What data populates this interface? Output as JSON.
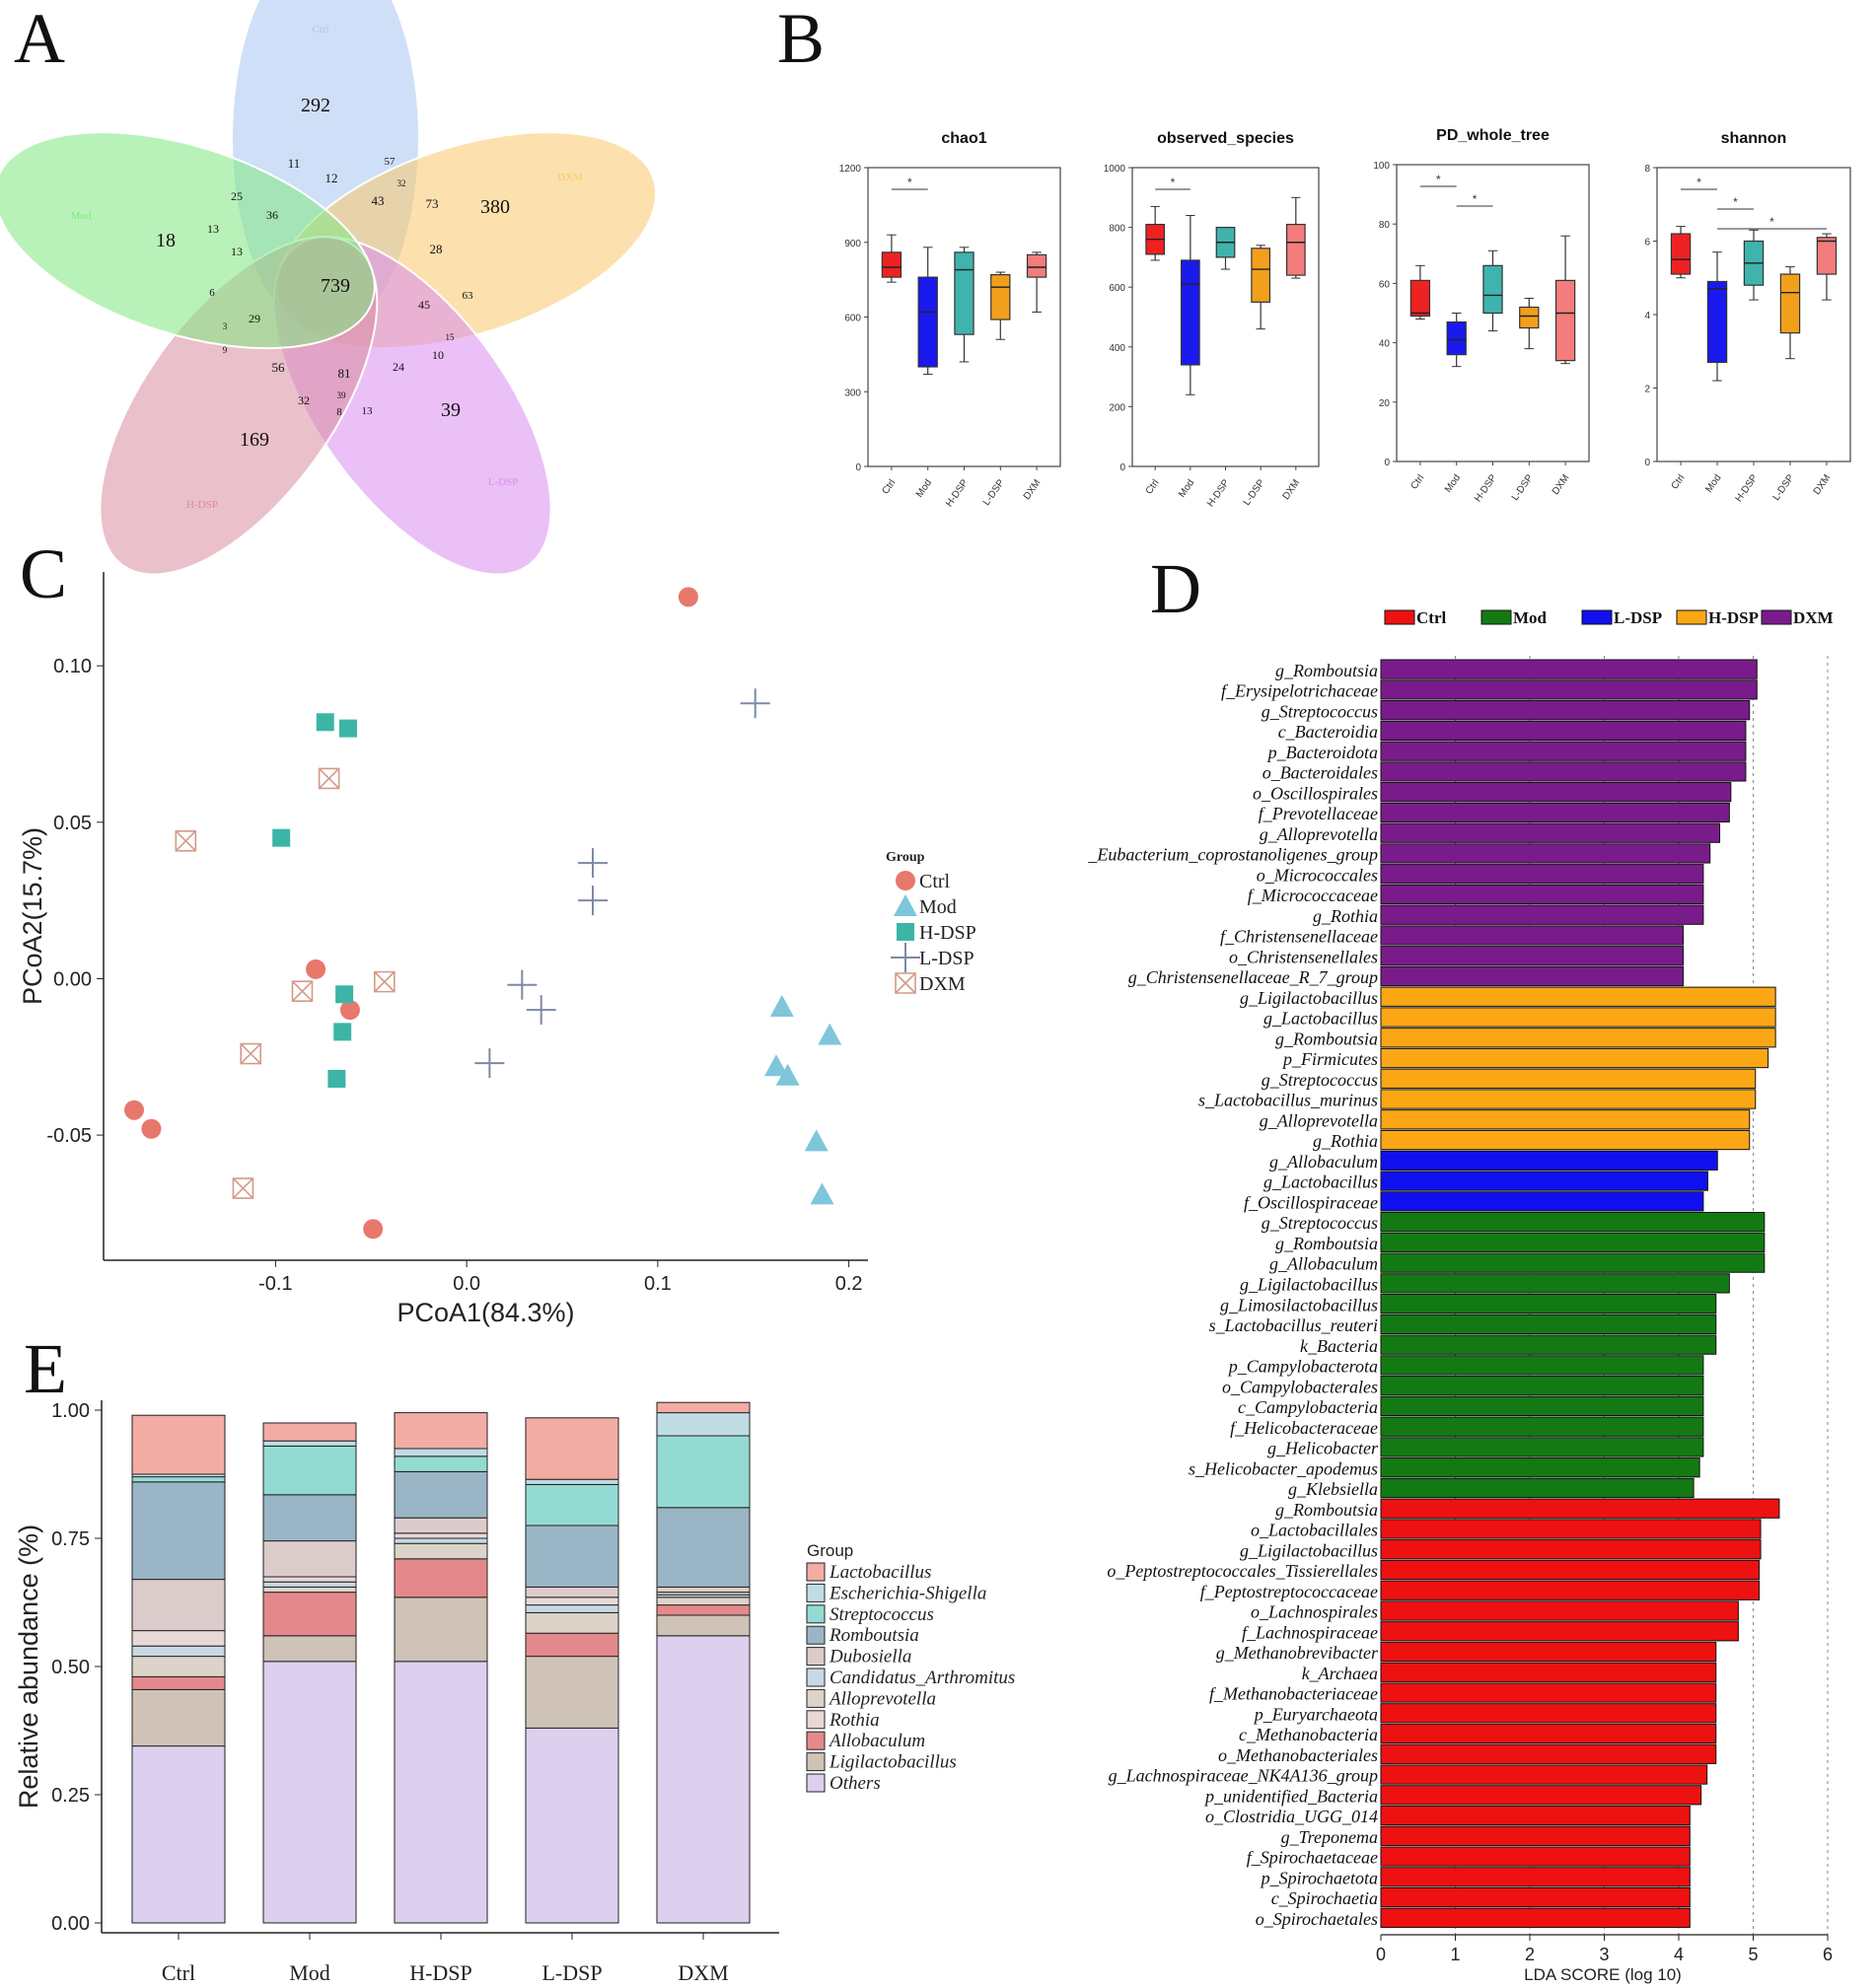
{
  "panels": {
    "A": "A",
    "B": "B",
    "C": "C",
    "D": "D",
    "E": "E"
  },
  "colors": {
    "Ctrl": "#ee2222",
    "Mod": "#1a1aee",
    "H-DSP": "#3fb3ad",
    "L-DSP": "#f2a01b",
    "DXM": "#f47c7c",
    "lda_Ctrl": "#ee1111",
    "lda_Mod": "#137a13",
    "lda_L-DSP": "#1010ee",
    "lda_H-DSP": "#fba715",
    "lda_DXM": "#7a1b8c",
    "pcoa_Ctrl": "#e8776c",
    "pcoa_Mod": "#7fc6da",
    "pcoa_H-DSP": "#3cb5a6",
    "pcoa_L-DSP": "#7d8aa5",
    "pcoa_DXM": "#d49b86"
  },
  "chart_data": [
    {
      "panel": "A",
      "type": "venn",
      "sets": [
        {
          "name": "Ctrl",
          "color": "#aac4f2",
          "unique": 292
        },
        {
          "name": "DXM",
          "color": "#f9c86b",
          "unique": 380
        },
        {
          "name": "L-DSP",
          "color": "#d98cf0",
          "unique": 39
        },
        {
          "name": "H-DSP",
          "color": "#d98c9e",
          "unique": 169
        },
        {
          "name": "Mod",
          "color": "#7fe77f",
          "unique": 18
        }
      ],
      "core": 739,
      "region_labels": [
        "11",
        "12",
        "57",
        "32",
        "73",
        "43",
        "28",
        "36",
        "25",
        "13",
        "13",
        "6",
        "29",
        "3",
        "9",
        "45",
        "63",
        "10",
        "15",
        "24",
        "81",
        "56",
        "32",
        "39",
        "13",
        "8"
      ]
    },
    {
      "panel": "B",
      "type": "box",
      "groups": [
        "Ctrl",
        "Mod",
        "H-DSP",
        "L-DSP",
        "DXM"
      ],
      "plots": [
        {
          "title": "chao1",
          "ymax": 1200,
          "ticks": [
            0,
            300,
            600,
            900,
            1200
          ],
          "boxes": [
            [
              740,
              760,
              800,
              860,
              930
            ],
            [
              370,
              400,
              620,
              760,
              880
            ],
            [
              420,
              530,
              790,
              860,
              880
            ],
            [
              510,
              590,
              720,
              770,
              780
            ],
            [
              620,
              760,
              800,
              850,
              860
            ]
          ],
          "sig": [
            [
              0,
              1
            ]
          ]
        },
        {
          "title": "observed_species",
          "ymax": 1000,
          "ticks": [
            0,
            200,
            400,
            600,
            800,
            1000
          ],
          "boxes": [
            [
              690,
              710,
              760,
              810,
              870
            ],
            [
              240,
              340,
              610,
              690,
              840
            ],
            [
              660,
              700,
              750,
              800,
              800
            ],
            [
              460,
              550,
              660,
              730,
              740
            ],
            [
              630,
              640,
              750,
              810,
              900
            ]
          ],
          "sig": [
            [
              0,
              1
            ]
          ]
        },
        {
          "title": "PD_whole_tree",
          "ymax": 100,
          "ticks": [
            0,
            20,
            40,
            60,
            80,
            100
          ],
          "boxes": [
            [
              48,
              49,
              50,
              61,
              66
            ],
            [
              32,
              36,
              41,
              47,
              50
            ],
            [
              44,
              50,
              56,
              66,
              71
            ],
            [
              38,
              45,
              49,
              52,
              55
            ],
            [
              33,
              34,
              50,
              61,
              76
            ]
          ],
          "sig": [
            [
              0,
              1
            ],
            [
              1,
              2
            ]
          ]
        },
        {
          "title": "shannon",
          "ymax": 8,
          "ticks": [
            0,
            2,
            4,
            6,
            8
          ],
          "boxes": [
            [
              5.0,
              5.1,
              5.5,
              6.2,
              6.4
            ],
            [
              2.2,
              2.7,
              4.7,
              4.9,
              5.7
            ],
            [
              4.4,
              4.8,
              5.4,
              6.0,
              6.3
            ],
            [
              2.8,
              3.5,
              4.6,
              5.1,
              5.3
            ],
            [
              4.4,
              5.1,
              6.0,
              6.1,
              6.2
            ]
          ],
          "sig": [
            [
              0,
              1
            ],
            [
              1,
              2
            ],
            [
              1,
              4
            ]
          ]
        }
      ]
    },
    {
      "panel": "C",
      "type": "scatter",
      "xlabel": "PCoA1(84.3%)",
      "ylabel": "PCoA2(15.7%)",
      "xlim": [
        -0.19,
        0.21
      ],
      "ylim": [
        -0.09,
        0.13
      ],
      "xticks": [
        -0.1,
        0.0,
        0.1,
        0.2
      ],
      "xtick_labels": [
        "-0.1",
        "0.0",
        "0.1",
        "0.2"
      ],
      "yticks": [
        -0.05,
        0.0,
        0.05,
        0.1
      ],
      "ytick_labels": [
        "-0.05",
        "0.00",
        "0.05",
        "0.10"
      ],
      "legend_title": "Group",
      "series": [
        {
          "name": "Ctrl",
          "shape": "circle",
          "points": [
            [
              0.116,
              0.122
            ],
            [
              -0.079,
              0.003
            ],
            [
              -0.061,
              -0.01
            ],
            [
              -0.174,
              -0.042
            ],
            [
              -0.165,
              -0.048
            ],
            [
              -0.049,
              -0.08
            ]
          ]
        },
        {
          "name": "Mod",
          "shape": "triangle",
          "points": [
            [
              0.165,
              -0.009
            ],
            [
              0.19,
              -0.018
            ],
            [
              0.162,
              -0.028
            ],
            [
              0.168,
              -0.031
            ],
            [
              0.183,
              -0.052
            ],
            [
              0.186,
              -0.069
            ]
          ]
        },
        {
          "name": "H-DSP",
          "shape": "square",
          "points": [
            [
              -0.074,
              0.082
            ],
            [
              -0.062,
              0.08
            ],
            [
              -0.097,
              0.045
            ],
            [
              -0.064,
              -0.005
            ],
            [
              -0.065,
              -0.017
            ],
            [
              -0.068,
              -0.032
            ]
          ]
        },
        {
          "name": "L-DSP",
          "shape": "plus",
          "points": [
            [
              0.151,
              0.088
            ],
            [
              0.066,
              0.037
            ],
            [
              0.066,
              0.025
            ],
            [
              0.029,
              -0.002
            ],
            [
              0.039,
              -0.01
            ],
            [
              0.012,
              -0.027
            ]
          ]
        },
        {
          "name": "DXM",
          "shape": "boxx",
          "points": [
            [
              -0.072,
              0.064
            ],
            [
              -0.147,
              0.044
            ],
            [
              -0.086,
              -0.004
            ],
            [
              -0.043,
              -0.001
            ],
            [
              -0.113,
              -0.024
            ],
            [
              -0.117,
              -0.067
            ]
          ]
        }
      ]
    },
    {
      "panel": "D",
      "type": "bar",
      "orientation": "horizontal",
      "xlabel": "LDA SCORE (log 10)",
      "xlim": [
        0,
        6
      ],
      "xticks": [
        "0",
        "1",
        "2",
        "3",
        "4",
        "5",
        "6"
      ],
      "legend": [
        "Ctrl",
        "Mod",
        "L-DSP",
        "H-DSP",
        "DXM"
      ],
      "bars": [
        {
          "label": "g_Romboutsia",
          "value": 5.05,
          "group": "DXM"
        },
        {
          "label": "f_Erysipelotrichaceae",
          "value": 5.05,
          "group": "DXM"
        },
        {
          "label": "g_Streptococcus",
          "value": 4.95,
          "group": "DXM"
        },
        {
          "label": "c_Bacteroidia",
          "value": 4.9,
          "group": "DXM"
        },
        {
          "label": "p_Bacteroidota",
          "value": 4.9,
          "group": "DXM"
        },
        {
          "label": "o_Bacteroidales",
          "value": 4.9,
          "group": "DXM"
        },
        {
          "label": "o_Oscillospirales",
          "value": 4.7,
          "group": "DXM"
        },
        {
          "label": "f_Prevotellaceae",
          "value": 4.68,
          "group": "DXM"
        },
        {
          "label": "g_Alloprevotella",
          "value": 4.55,
          "group": "DXM"
        },
        {
          "label": "_Eubacterium_coprostanoligenes_group",
          "value": 4.42,
          "group": "DXM"
        },
        {
          "label": "o_Micrococcales",
          "value": 4.33,
          "group": "DXM"
        },
        {
          "label": "f_Micrococcaceae",
          "value": 4.33,
          "group": "DXM"
        },
        {
          "label": "g_Rothia",
          "value": 4.33,
          "group": "DXM"
        },
        {
          "label": "f_Christensenellaceae",
          "value": 4.06,
          "group": "DXM"
        },
        {
          "label": "o_Christensenellales",
          "value": 4.06,
          "group": "DXM"
        },
        {
          "label": "g_Christensenellaceae_R_7_group",
          "value": 4.06,
          "group": "DXM"
        },
        {
          "label": "g_Ligilactobacillus",
          "value": 5.3,
          "group": "H-DSP"
        },
        {
          "label": "g_Lactobacillus",
          "value": 5.3,
          "group": "H-DSP"
        },
        {
          "label": "g_Romboutsia",
          "value": 5.3,
          "group": "H-DSP"
        },
        {
          "label": "p_Firmicutes",
          "value": 5.2,
          "group": "H-DSP"
        },
        {
          "label": "g_Streptococcus",
          "value": 5.03,
          "group": "H-DSP"
        },
        {
          "label": "s_Lactobacillus_murinus",
          "value": 5.03,
          "group": "H-DSP"
        },
        {
          "label": "g_Alloprevotella",
          "value": 4.95,
          "group": "H-DSP"
        },
        {
          "label": "g_Rothia",
          "value": 4.95,
          "group": "H-DSP"
        },
        {
          "label": "g_Allobaculum",
          "value": 4.52,
          "group": "L-DSP"
        },
        {
          "label": "g_Lactobacillus",
          "value": 4.39,
          "group": "L-DSP"
        },
        {
          "label": "f_Oscillospiraceae",
          "value": 4.33,
          "group": "L-DSP"
        },
        {
          "label": "g_Streptococcus",
          "value": 5.15,
          "group": "Mod"
        },
        {
          "label": "g_Romboutsia",
          "value": 5.15,
          "group": "Mod"
        },
        {
          "label": "g_Allobaculum",
          "value": 5.15,
          "group": "Mod"
        },
        {
          "label": "g_Ligilactobacillus",
          "value": 4.68,
          "group": "Mod"
        },
        {
          "label": "g_Limosilactobacillus",
          "value": 4.5,
          "group": "Mod"
        },
        {
          "label": "s_Lactobacillus_reuteri",
          "value": 4.5,
          "group": "Mod"
        },
        {
          "label": "k_Bacteria",
          "value": 4.5,
          "group": "Mod"
        },
        {
          "label": "p_Campylobacterota",
          "value": 4.33,
          "group": "Mod"
        },
        {
          "label": "o_Campylobacterales",
          "value": 4.33,
          "group": "Mod"
        },
        {
          "label": "c_Campylobacteria",
          "value": 4.33,
          "group": "Mod"
        },
        {
          "label": "f_Helicobacteraceae",
          "value": 4.33,
          "group": "Mod"
        },
        {
          "label": "g_Helicobacter",
          "value": 4.33,
          "group": "Mod"
        },
        {
          "label": "s_Helicobacter_apodemus",
          "value": 4.28,
          "group": "Mod"
        },
        {
          "label": "g_Klebsiella",
          "value": 4.2,
          "group": "Mod"
        },
        {
          "label": "g_Romboutsia",
          "value": 5.35,
          "group": "Ctrl"
        },
        {
          "label": "o_Lactobacillales",
          "value": 5.1,
          "group": "Ctrl"
        },
        {
          "label": "g_Ligilactobacillus",
          "value": 5.1,
          "group": "Ctrl"
        },
        {
          "label": "o_Peptostreptococcales_Tissierellales",
          "value": 5.08,
          "group": "Ctrl"
        },
        {
          "label": "f_Peptostreptococcaceae",
          "value": 5.08,
          "group": "Ctrl"
        },
        {
          "label": "o_Lachnospirales",
          "value": 4.8,
          "group": "Ctrl"
        },
        {
          "label": "f_Lachnospiraceae",
          "value": 4.8,
          "group": "Ctrl"
        },
        {
          "label": "g_Methanobrevibacter",
          "value": 4.5,
          "group": "Ctrl"
        },
        {
          "label": "k_Archaea",
          "value": 4.5,
          "group": "Ctrl"
        },
        {
          "label": "f_Methanobacteriaceae",
          "value": 4.5,
          "group": "Ctrl"
        },
        {
          "label": "p_Euryarchaeota",
          "value": 4.5,
          "group": "Ctrl"
        },
        {
          "label": "c_Methanobacteria",
          "value": 4.5,
          "group": "Ctrl"
        },
        {
          "label": "o_Methanobacteriales",
          "value": 4.5,
          "group": "Ctrl"
        },
        {
          "label": "g_Lachnospiraceae_NK4A136_group",
          "value": 4.38,
          "group": "Ctrl"
        },
        {
          "label": "p_unidentified_Bacteria",
          "value": 4.3,
          "group": "Ctrl"
        },
        {
          "label": "o_Clostridia_UGG_014",
          "value": 4.15,
          "group": "Ctrl"
        },
        {
          "label": "g_Treponema",
          "value": 4.15,
          "group": "Ctrl"
        },
        {
          "label": "f_Spirochaetaceae",
          "value": 4.15,
          "group": "Ctrl"
        },
        {
          "label": "p_Spirochaetota",
          "value": 4.15,
          "group": "Ctrl"
        },
        {
          "label": "c_Spirochaetia",
          "value": 4.15,
          "group": "Ctrl"
        },
        {
          "label": "o_Spirochaetales",
          "value": 4.15,
          "group": "Ctrl"
        }
      ]
    },
    {
      "panel": "E",
      "type": "bar",
      "stacked": true,
      "ylabel": "Relative abundance (%)",
      "ylim": [
        0,
        1
      ],
      "yticks": [
        "0.00",
        "0.25",
        "0.50",
        "0.75",
        "1.00"
      ],
      "categories": [
        "Ctrl",
        "Mod",
        "H-DSP",
        "L-DSP",
        "DXM"
      ],
      "legend_title": "Group",
      "series": [
        {
          "name": "Others",
          "color": "#dcd0ee",
          "values": [
            0.345,
            0.51,
            0.51,
            0.38,
            0.56
          ]
        },
        {
          "name": "Ligilactobacillus",
          "color": "#cfc2b7",
          "values": [
            0.11,
            0.05,
            0.125,
            0.14,
            0.04
          ]
        },
        {
          "name": "Allobaculum",
          "color": "#e4898b",
          "values": [
            0.025,
            0.085,
            0.075,
            0.045,
            0.02
          ]
        },
        {
          "name": "Alloprevotella",
          "color": "#dcd4c8",
          "values": [
            0.04,
            0.01,
            0.03,
            0.04,
            0.015
          ]
        },
        {
          "name": "Candidatus_Arthromitus",
          "color": "#c7d9e4",
          "values": [
            0.02,
            0.01,
            0.01,
            0.015,
            0.005
          ]
        },
        {
          "name": "Rothia",
          "color": "#e8d8d8",
          "values": [
            0.03,
            0.01,
            0.01,
            0.015,
            0.005
          ]
        },
        {
          "name": "Dubosiella",
          "color": "#dccbcb",
          "values": [
            0.1,
            0.07,
            0.03,
            0.02,
            0.01
          ]
        },
        {
          "name": "Romboutsia",
          "color": "#9ab6c6",
          "values": [
            0.19,
            0.09,
            0.09,
            0.12,
            0.155
          ]
        },
        {
          "name": "Streptococcus",
          "color": "#93dbd2",
          "values": [
            0.01,
            0.095,
            0.03,
            0.08,
            0.14
          ]
        },
        {
          "name": "Escherichia-Shigella",
          "color": "#c0dde6",
          "values": [
            0.005,
            0.01,
            0.015,
            0.01,
            0.045
          ]
        },
        {
          "name": "Lactobacillus",
          "color": "#f3aca4",
          "values": [
            0.115,
            0.035,
            0.07,
            0.12,
            0.02
          ]
        }
      ],
      "legend_order": [
        "Lactobacillus",
        "Escherichia-Shigella",
        "Streptococcus",
        "Romboutsia",
        "Dubosiella",
        "Candidatus_Arthromitus",
        "Alloprevotella",
        "Rothia",
        "Allobaculum",
        "Ligilactobacillus",
        "Others"
      ]
    }
  ]
}
